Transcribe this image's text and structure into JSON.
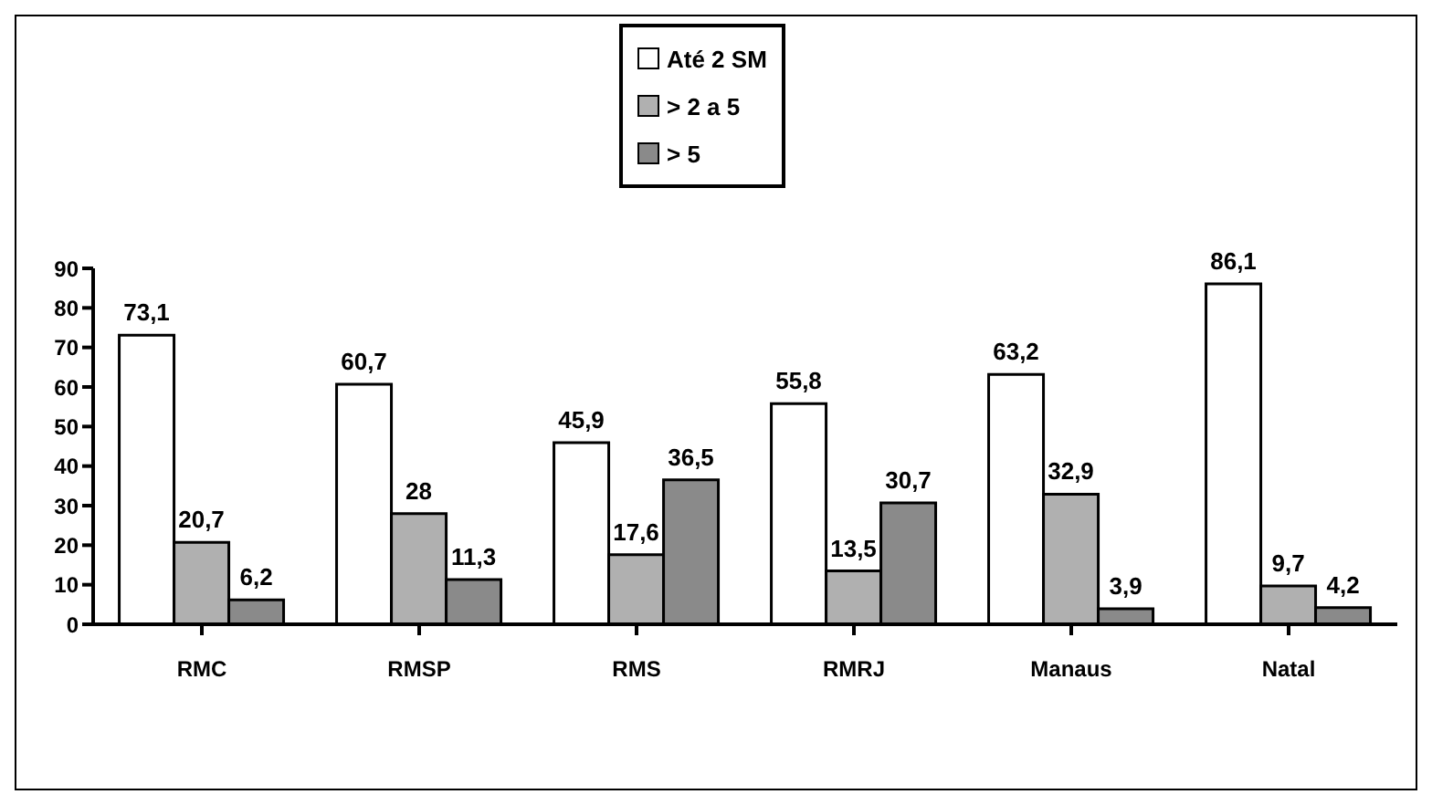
{
  "chart_data": {
    "type": "bar",
    "categories": [
      "RMC",
      "RMSP",
      "RMS",
      "RMRJ",
      "Manaus",
      "Natal"
    ],
    "series": [
      {
        "name": "Até 2 SM",
        "color": "#ffffff",
        "values": [
          73.1,
          60.7,
          45.9,
          55.8,
          63.2,
          86.1
        ],
        "value_labels": [
          "73,1",
          "60,7",
          "45,9",
          "55,8",
          "63,2",
          "86,1"
        ]
      },
      {
        "name": "> 2 a 5",
        "color": "#b0b0b0",
        "values": [
          20.7,
          28,
          17.6,
          13.5,
          32.9,
          9.7
        ],
        "value_labels": [
          "20,7",
          "28",
          "17,6",
          "13,5",
          "32,9",
          "9,7"
        ]
      },
      {
        "name": "> 5",
        "color": "#8a8a8a",
        "values": [
          6.2,
          11.3,
          36.5,
          30.7,
          3.9,
          4.2
        ],
        "value_labels": [
          "6,2",
          "11,3",
          "36,5",
          "30,7",
          "3,9",
          "4,2"
        ]
      }
    ],
    "ylim": [
      0,
      90
    ],
    "yticks": [
      0,
      10,
      20,
      30,
      40,
      50,
      60,
      70,
      80,
      90
    ],
    "grid": false,
    "legend": "top"
  }
}
